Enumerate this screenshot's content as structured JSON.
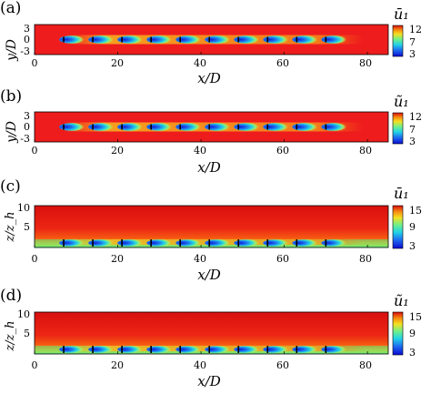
{
  "figure": {
    "panels": [
      {
        "label": "(a)",
        "ylabel": "y/D",
        "xlabel": "x/D",
        "yticks": [
          "3",
          "0",
          "-3"
        ],
        "xticks": [
          "0",
          "20",
          "40",
          "60",
          "80"
        ],
        "colorbar_label": "ū₁",
        "colorbar_ticks": [
          "12",
          "7",
          "3"
        ]
      },
      {
        "label": "(b)",
        "ylabel": "y/D",
        "xlabel": "x/D",
        "yticks": [
          "3",
          "0",
          "-3"
        ],
        "xticks": [
          "0",
          "20",
          "40",
          "60",
          "80"
        ],
        "colorbar_label": "ũ₁",
        "colorbar_ticks": [
          "12",
          "7",
          "3"
        ]
      },
      {
        "label": "(c)",
        "ylabel": "z/z_h",
        "xlabel": "x/D",
        "yticks": [
          "10",
          "5"
        ],
        "xticks": [
          "0",
          "20",
          "40",
          "60",
          "80"
        ],
        "colorbar_label": "ū₁",
        "colorbar_ticks": [
          "15",
          "9",
          "3"
        ]
      },
      {
        "label": "(d)",
        "ylabel": "z/z_h",
        "xlabel": "x/D",
        "yticks": [
          "10",
          "5"
        ],
        "xticks": [
          "0",
          "20",
          "40",
          "60",
          "80"
        ],
        "colorbar_label": "ũ₁",
        "colorbar_ticks": [
          "15",
          "9",
          "3"
        ]
      }
    ],
    "colors": {
      "free_stream": "#ee1c1c",
      "wake_core": "#1c35e6",
      "wake_mid": "#20c8e0",
      "axis": "#000000"
    }
  },
  "chart_data": [
    {
      "type": "heatmap",
      "title": "",
      "xlabel": "x/D",
      "ylabel": "y/D",
      "xlim": [
        0,
        85
      ],
      "ylim": [
        -3,
        3
      ],
      "colorbar": {
        "label": "ū₁",
        "range": [
          3,
          12
        ],
        "ticks": [
          3,
          7,
          12
        ]
      },
      "turbine_x": [
        7,
        14,
        21,
        28,
        35,
        42,
        49,
        56,
        63,
        70
      ]
    },
    {
      "type": "heatmap",
      "title": "",
      "xlabel": "x/D",
      "ylabel": "y/D",
      "xlim": [
        0,
        85
      ],
      "ylim": [
        -3,
        3
      ],
      "colorbar": {
        "label": "ũ₁",
        "range": [
          3,
          12
        ],
        "ticks": [
          3,
          7,
          12
        ]
      },
      "turbine_x": [
        7,
        14,
        21,
        28,
        35,
        42,
        49,
        56,
        63,
        70
      ]
    },
    {
      "type": "heatmap",
      "title": "",
      "xlabel": "x/D",
      "ylabel": "z/z_h",
      "xlim": [
        0,
        85
      ],
      "ylim": [
        0,
        10
      ],
      "colorbar": {
        "label": "ū₁",
        "range": [
          3,
          15
        ],
        "ticks": [
          3,
          9,
          15
        ]
      },
      "turbine_x": [
        7,
        14,
        21,
        28,
        35,
        42,
        49,
        56,
        63,
        70
      ]
    },
    {
      "type": "heatmap",
      "title": "",
      "xlabel": "x/D",
      "ylabel": "z/z_h",
      "xlim": [
        0,
        85
      ],
      "ylim": [
        0,
        10
      ],
      "colorbar": {
        "label": "ũ₁",
        "range": [
          3,
          15
        ],
        "ticks": [
          3,
          9,
          15
        ]
      },
      "turbine_x": [
        7,
        14,
        21,
        28,
        35,
        42,
        49,
        56,
        63,
        70
      ]
    }
  ]
}
